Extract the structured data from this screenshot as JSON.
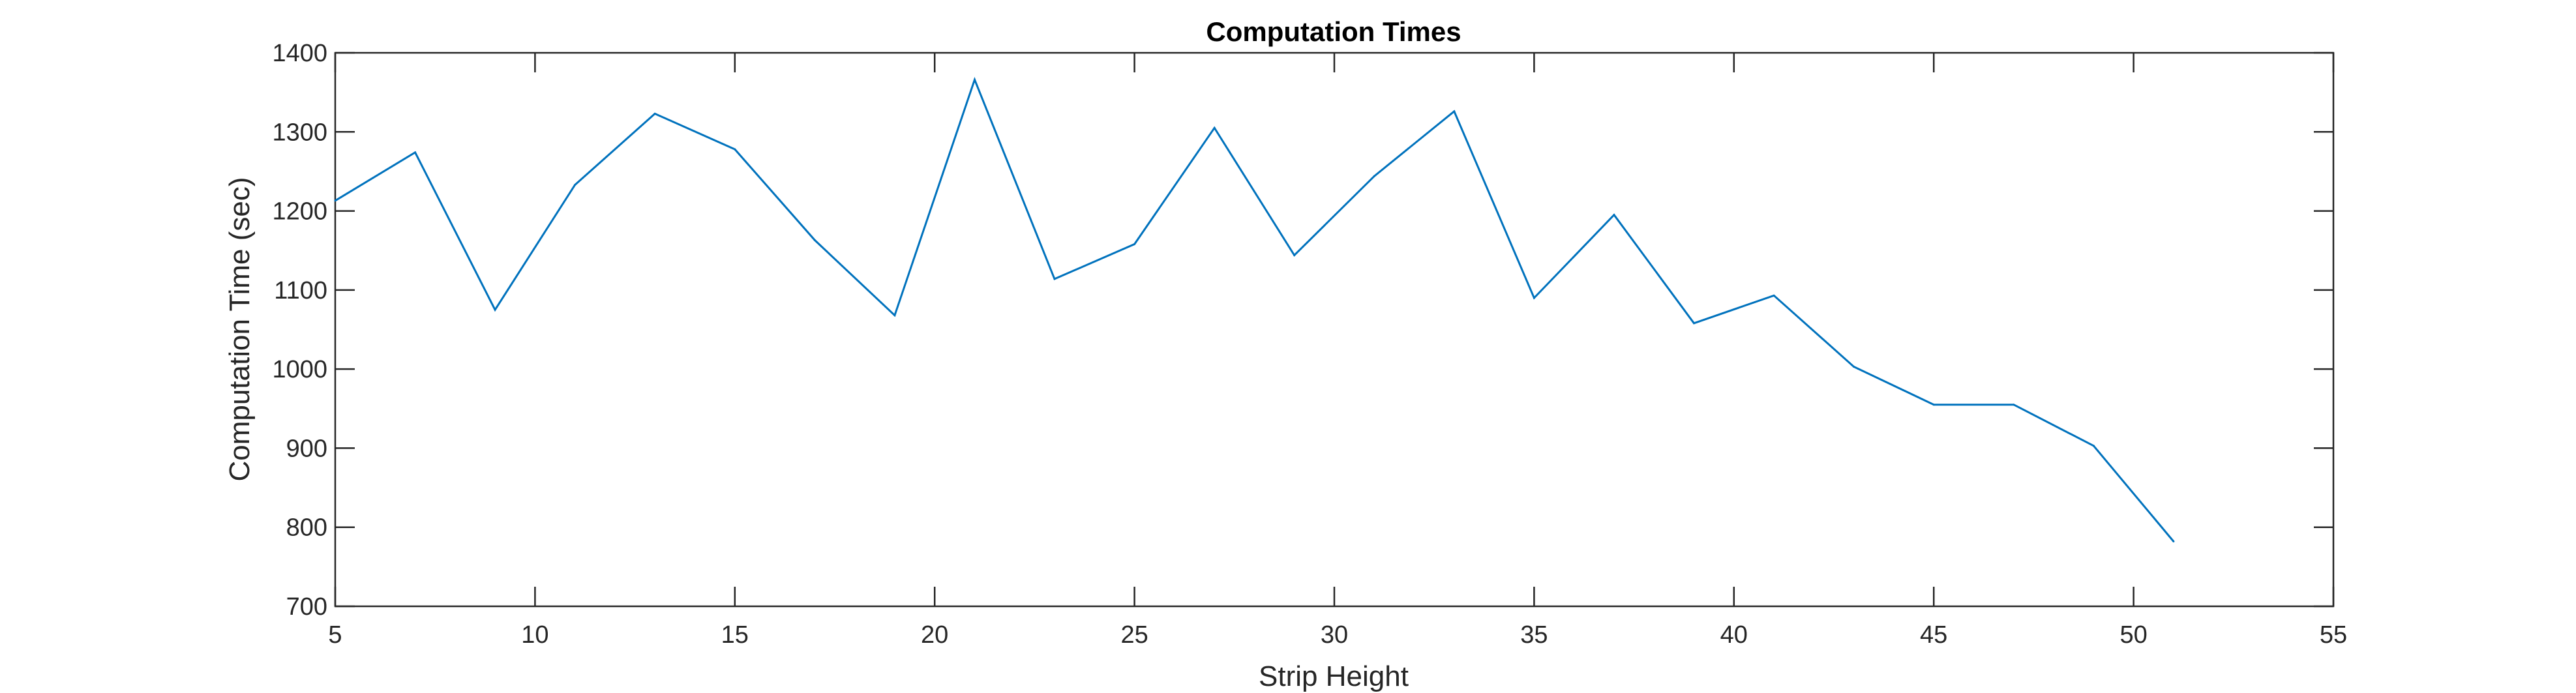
{
  "chart_data": {
    "type": "line",
    "title": "Computation Times",
    "xlabel": "Strip Height",
    "ylabel": "Computation Time (sec)",
    "xlim": [
      5,
      55
    ],
    "ylim": [
      700,
      1400
    ],
    "xticks": [
      5,
      10,
      15,
      20,
      25,
      30,
      35,
      40,
      45,
      50,
      55
    ],
    "yticks": [
      700,
      800,
      900,
      1000,
      1100,
      1200,
      1300,
      1400
    ],
    "grid": false,
    "legend": "none",
    "series": [
      {
        "color": "#0072BD",
        "x": [
          5,
          7,
          9,
          11,
          13,
          15,
          17,
          19,
          21,
          23,
          25,
          27,
          29,
          31,
          33,
          35,
          37,
          39,
          41,
          43,
          45,
          47,
          49,
          51
        ],
        "y": [
          1213,
          1274,
          1075,
          1233,
          1323,
          1278,
          1163,
          1068,
          1366,
          1114,
          1158,
          1305,
          1144,
          1244,
          1326,
          1090,
          1195,
          1058,
          1093,
          1003,
          955,
          955,
          903,
          782
        ]
      }
    ]
  }
}
